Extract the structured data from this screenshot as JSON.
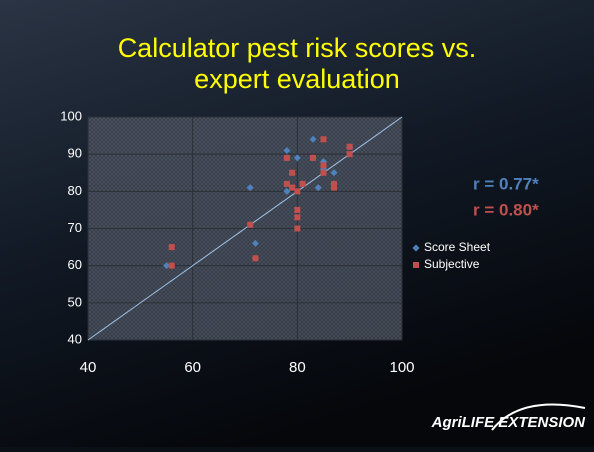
{
  "chart_data": {
    "type": "scatter",
    "title": "Calculator pest risk scores vs. expert evaluation",
    "xlim": [
      40,
      100
    ],
    "xticks": [
      40,
      60,
      80,
      100
    ],
    "ylim": [
      40,
      100
    ],
    "yticks": [
      40,
      50,
      60,
      70,
      80,
      90,
      100
    ],
    "grid": true,
    "identity_line": true,
    "legend": "right",
    "series": [
      {
        "name": "Score Sheet",
        "color": "#4f81bd",
        "marker": "diamond",
        "x": [
          71,
          72,
          78,
          78,
          80,
          83,
          84,
          85,
          85,
          87,
          87,
          90,
          83,
          55,
          78
        ],
        "y": [
          81,
          66,
          91,
          89,
          89,
          94,
          81,
          88,
          86,
          85,
          82,
          92,
          89,
          60,
          80
        ]
      },
      {
        "name": "Subjective",
        "color": "#c0504d",
        "marker": "square",
        "x": [
          56,
          56,
          71,
          72,
          78,
          78,
          79,
          79,
          80,
          80,
          80,
          81,
          83,
          85,
          85,
          85,
          87,
          87,
          90,
          90,
          80
        ],
        "y": [
          65,
          60,
          71,
          62,
          89,
          82,
          85,
          81,
          75,
          73,
          70,
          82,
          89,
          94,
          87,
          85,
          82,
          81,
          92,
          90,
          80
        ]
      }
    ],
    "annotations": [
      {
        "text": "r = 0.77*",
        "color": "#4f81bd"
      },
      {
        "text": "r = 0.80*",
        "color": "#c0504d"
      }
    ],
    "logo": "AgriLIFE EXTENSION"
  }
}
